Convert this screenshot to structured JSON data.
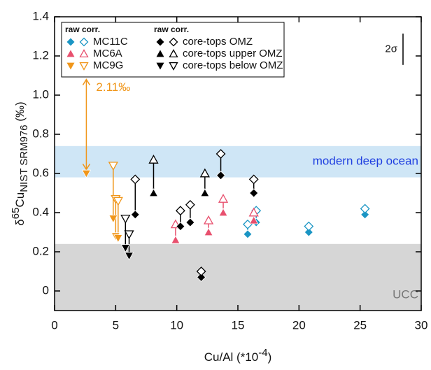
{
  "chart_data": {
    "type": "scatter",
    "x_label": {
      "main": "Cu/Al (*10",
      "sup": "-4",
      "suffix": ")"
    },
    "y_label": {
      "prefix": "δ",
      "sup": "65",
      "main": "Cu",
      "sub": "NIST SRM976",
      "suffix": " (‰)"
    },
    "xlim": [
      0,
      30
    ],
    "xticks": [
      0,
      5,
      10,
      15,
      20,
      25,
      30
    ],
    "ylim": [
      -0.1,
      1.4
    ],
    "yticks": [
      0,
      0.2,
      0.4,
      0.6,
      0.8,
      {
        "value": 1,
        "label": "1.0"
      },
      1.2,
      1.4
    ],
    "bands": [
      {
        "label": "modern deep ocean",
        "y0": 0.58,
        "y1": 0.74,
        "color": "#cfe6f6",
        "text_color": "#1f3fe0"
      },
      {
        "label": "UCC",
        "y0": -0.1,
        "y1": 0.24,
        "color": "#d6d6d6",
        "text_color": "#777777"
      }
    ],
    "legend_headers": [
      "raw corr.",
      "raw corr."
    ],
    "series": [
      {
        "name": "MC11C",
        "color": "#1a95c4",
        "marker": "diamond",
        "x": [
          15.8,
          16.5,
          20.8,
          25.4
        ],
        "raw": [
          0.29,
          0.35,
          0.3,
          0.39
        ],
        "corr": [
          0.34,
          0.41,
          0.33,
          0.42
        ]
      },
      {
        "name": "MC6A",
        "color": "#e8506e",
        "marker": "up",
        "x": [
          9.9,
          12.6,
          13.8,
          16.3
        ],
        "raw": [
          0.26,
          0.3,
          0.4,
          0.36
        ],
        "corr": [
          0.34,
          0.36,
          0.47,
          0.4
        ]
      },
      {
        "name": "MC9G",
        "color": "#f0961a",
        "marker": "down",
        "x": [
          2.6,
          4.8,
          5.0,
          5.2
        ],
        "raw": [
          0.6,
          0.37,
          0.28,
          0.27
        ],
        "corr": [
          null,
          0.64,
          0.47,
          0.46
        ]
      },
      {
        "name": "core-tops OMZ",
        "color": "#000000",
        "marker": "diamond",
        "x": [
          6.6,
          10.3,
          11.1,
          12.0,
          13.6,
          16.3
        ],
        "raw": [
          0.39,
          0.33,
          0.35,
          0.07,
          0.59,
          0.5
        ],
        "corr": [
          0.57,
          0.41,
          0.44,
          0.1,
          0.7,
          0.57
        ]
      },
      {
        "name": "core-tops upper OMZ",
        "color": "#000000",
        "marker": "up",
        "x": [
          8.1,
          12.3
        ],
        "raw": [
          0.5,
          0.5
        ],
        "corr": [
          0.67,
          0.6
        ]
      },
      {
        "name": "core-tops below OMZ",
        "color": "#000000",
        "marker": "down",
        "x": [
          5.8,
          6.1
        ],
        "raw": [
          0.22,
          0.18
        ],
        "corr": [
          0.37,
          0.29
        ]
      }
    ],
    "arrow": {
      "x": 2.6,
      "y_start": 1.08,
      "y_end": 0.62,
      "label": "2.11‰",
      "color": "#f0961a"
    },
    "two_sigma": {
      "label": "2σ",
      "value": 0.16
    }
  }
}
